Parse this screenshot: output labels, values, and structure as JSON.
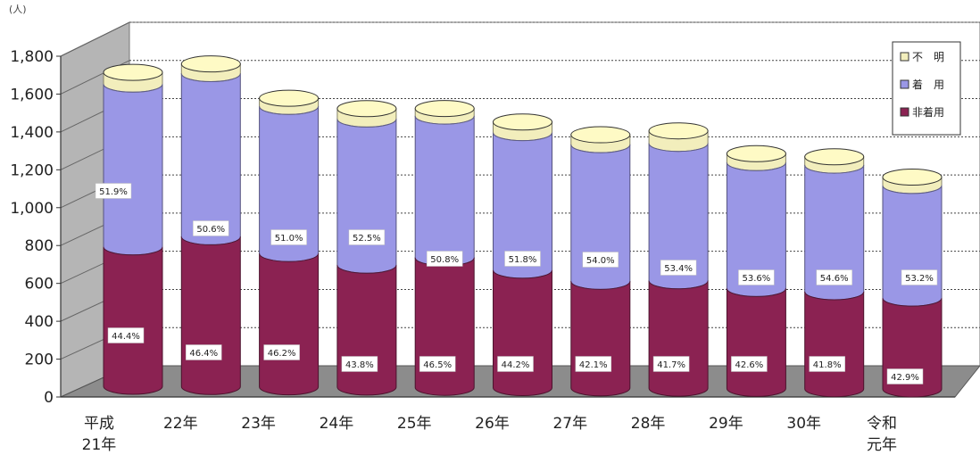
{
  "chart_data": {
    "type": "bar",
    "stacked": true,
    "style": "3d-cylinder",
    "unit_label": "(人)",
    "ylim": [
      0,
      1800
    ],
    "y_ticks": [
      "0",
      "200",
      "400",
      "600",
      "800",
      "1,000",
      "1,200",
      "1,400",
      "1,600",
      "1,800"
    ],
    "grid": true,
    "legend_position": "top-right",
    "categories": [
      [
        "平成",
        "21年"
      ],
      [
        "22年"
      ],
      [
        "23年"
      ],
      [
        "24年"
      ],
      [
        "25年"
      ],
      [
        "26年"
      ],
      [
        "27年"
      ],
      [
        "28年"
      ],
      [
        "29年"
      ],
      [
        "30年"
      ],
      [
        "令和",
        "元年"
      ]
    ],
    "series": [
      {
        "name": "非着用",
        "color": "#8b2252",
        "values": [
          736,
          791,
          704,
          644,
          685,
          620,
          563,
          567,
          528,
          512,
          480
        ],
        "labels": [
          "44.4%",
          "46.4%",
          "46.2%",
          "43.8%",
          "46.5%",
          "44.2%",
          "42.1%",
          "41.7%",
          "42.6%",
          "41.8%",
          "42.9%"
        ]
      },
      {
        "name": "着　用",
        "color": "#9a97e6",
        "values": [
          860,
          862,
          777,
          772,
          748,
          727,
          722,
          726,
          665,
          669,
          595
        ],
        "labels": [
          "51.9%",
          "50.6%",
          "51.0%",
          "52.5%",
          "50.8%",
          "51.8%",
          "54.0%",
          "53.4%",
          "53.6%",
          "54.6%",
          "53.2%"
        ]
      },
      {
        "name": "不　明",
        "color": "#f2eebc",
        "values": [
          62,
          51,
          43,
          55,
          40,
          56,
          52,
          66,
          47,
          44,
          44
        ],
        "labels": []
      }
    ],
    "legend_order": [
      "不　明",
      "着　用",
      "非着用"
    ]
  }
}
